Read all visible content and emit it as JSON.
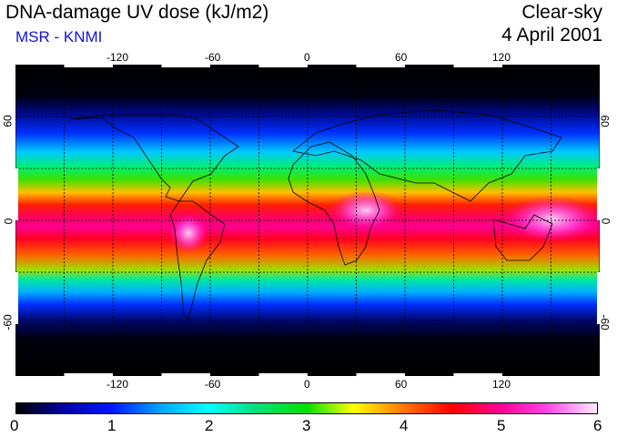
{
  "header": {
    "title": "DNA-damage UV dose (kJ/m2)",
    "subtitle": "MSR - KNMI",
    "sky_condition": "Clear-sky",
    "date": "4 April 2001"
  },
  "map": {
    "lon_ticks": [
      "-120",
      "-60",
      "0",
      "60",
      "120"
    ],
    "lat_ticks_left": [
      "60",
      "0",
      "-60"
    ],
    "lat_ticks_right": [
      "60",
      "0",
      "-60"
    ],
    "gridlines": "dashed",
    "colors": {
      "high_latitude": "#000000",
      "mid_latitude": "#0020ff",
      "subtropics": "#00e000",
      "tropics": "#ff0000",
      "peak": "#ff40e0"
    }
  },
  "colorbar": {
    "labels": [
      "0",
      "1",
      "2",
      "3",
      "4",
      "5",
      "6"
    ],
    "range": [
      0,
      6
    ]
  }
}
